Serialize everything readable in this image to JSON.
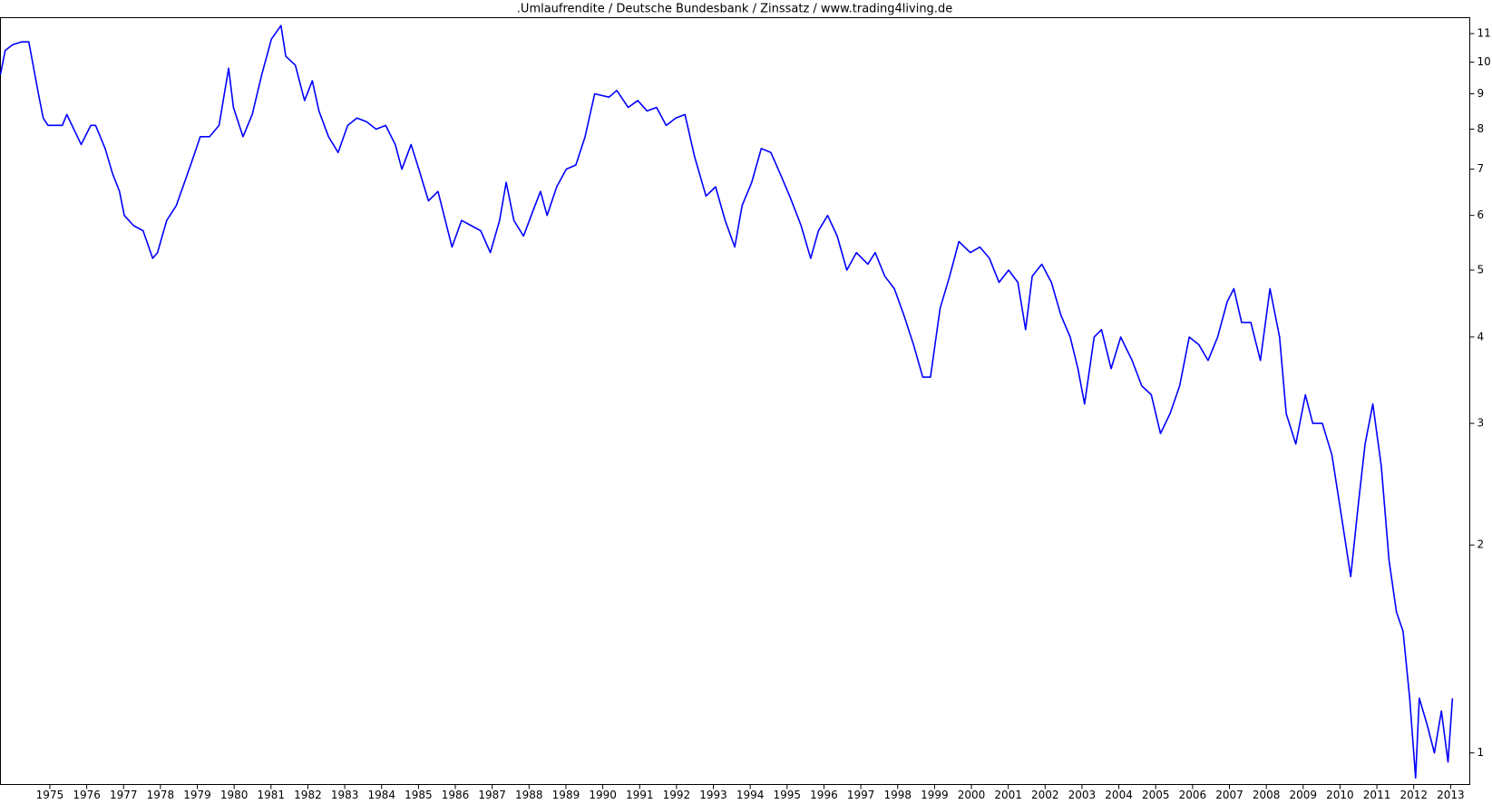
{
  "chart_data": {
    "type": "line",
    "title": ".Umlaufrendite / Deutsche Bundesbank / Zinssatz / www.trading4living.de",
    "log_scale": true,
    "grid": false,
    "xlim": [
      1973.66,
      2013.52
    ],
    "xticks": [
      1975,
      1976,
      1977,
      1978,
      1979,
      1980,
      1981,
      1982,
      1983,
      1984,
      1985,
      1986,
      1987,
      1988,
      1989,
      1990,
      1991,
      1992,
      1993,
      1994,
      1995,
      1996,
      1997,
      1998,
      1999,
      2000,
      2001,
      2002,
      2003,
      2004,
      2005,
      2006,
      2007,
      2008,
      2009,
      2010,
      2011,
      2012,
      2013
    ],
    "ylim": [
      0.9,
      11.6
    ],
    "yticks": [
      1,
      2,
      3,
      4,
      5,
      6,
      7,
      8,
      9,
      10,
      11
    ],
    "x": [
      1973.66,
      1973.79,
      1973.99,
      1974.23,
      1974.43,
      1974.69,
      1974.82,
      1974.95,
      1975.34,
      1975.46,
      1975.85,
      1976.11,
      1976.24,
      1976.5,
      1976.7,
      1976.89,
      1977.02,
      1977.27,
      1977.53,
      1977.79,
      1977.92,
      1978.17,
      1978.43,
      1978.82,
      1979.08,
      1979.33,
      1979.59,
      1979.85,
      1979.98,
      1980.24,
      1980.49,
      1980.75,
      1981.01,
      1981.27,
      1981.4,
      1981.66,
      1981.91,
      1982.12,
      1982.3,
      1982.56,
      1982.82,
      1983.08,
      1983.33,
      1983.59,
      1983.85,
      1984.11,
      1984.37,
      1984.55,
      1984.8,
      1985.01,
      1985.27,
      1985.53,
      1985.91,
      1986.17,
      1986.43,
      1986.69,
      1986.95,
      1987.2,
      1987.38,
      1987.59,
      1987.85,
      1988.11,
      1988.31,
      1988.49,
      1988.75,
      1989.01,
      1989.27,
      1989.52,
      1989.78,
      1990.17,
      1990.38,
      1990.69,
      1990.95,
      1991.2,
      1991.46,
      1991.72,
      1991.98,
      1992.23,
      1992.49,
      1992.8,
      1993.06,
      1993.32,
      1993.58,
      1993.78,
      1994.04,
      1994.3,
      1994.56,
      1994.81,
      1995.07,
      1995.38,
      1995.64,
      1995.85,
      1996.1,
      1996.36,
      1996.62,
      1996.88,
      1997.19,
      1997.39,
      1997.65,
      1997.91,
      1998.17,
      1998.43,
      1998.68,
      1998.89,
      1999.15,
      1999.41,
      1999.66,
      1999.97,
      2000.23,
      2000.49,
      2000.75,
      2001.01,
      2001.26,
      2001.47,
      2001.65,
      2001.91,
      2002.17,
      2002.43,
      2002.68,
      2002.89,
      2003.07,
      2003.33,
      2003.53,
      2003.79,
      2004.05,
      2004.36,
      2004.62,
      2004.88,
      2005.13,
      2005.39,
      2005.65,
      2005.91,
      2006.17,
      2006.42,
      2006.68,
      2006.94,
      2007.12,
      2007.33,
      2007.58,
      2007.84,
      2008.1,
      2008.36,
      2008.54,
      2008.8,
      2009.06,
      2009.26,
      2009.52,
      2009.78,
      2010.04,
      2010.29,
      2010.5,
      2010.68,
      2010.89,
      2011.12,
      2011.33,
      2011.53,
      2011.71,
      2011.89,
      2012.05,
      2012.15,
      2012.36,
      2012.56,
      2012.75,
      2012.93,
      2013.05
    ],
    "series": [
      {
        "color": "#0000ff",
        "values": [
          9.6,
          10.4,
          10.6,
          10.7,
          10.7,
          9.0,
          8.3,
          8.1,
          8.1,
          8.4,
          7.6,
          8.1,
          8.1,
          7.5,
          6.9,
          6.5,
          6.0,
          5.8,
          5.7,
          5.2,
          5.3,
          5.9,
          6.2,
          7.1,
          7.8,
          7.8,
          8.1,
          9.8,
          8.6,
          7.8,
          8.4,
          9.6,
          10.8,
          11.3,
          10.2,
          9.9,
          8.8,
          9.4,
          8.5,
          7.8,
          7.4,
          8.1,
          8.3,
          8.2,
          8.0,
          8.1,
          7.6,
          7.0,
          7.6,
          7.0,
          6.3,
          6.5,
          5.4,
          5.9,
          5.8,
          5.7,
          5.3,
          5.9,
          6.7,
          5.9,
          5.6,
          6.1,
          6.5,
          6.0,
          6.6,
          7.0,
          7.1,
          7.8,
          9.0,
          8.9,
          9.1,
          8.6,
          8.8,
          8.5,
          8.6,
          8.1,
          8.3,
          8.4,
          7.3,
          6.4,
          6.6,
          5.9,
          5.4,
          6.2,
          6.7,
          7.5,
          7.4,
          6.9,
          6.4,
          5.8,
          5.2,
          5.7,
          6.0,
          5.6,
          5.0,
          5.3,
          5.1,
          5.3,
          4.9,
          4.7,
          4.3,
          3.9,
          3.5,
          3.5,
          4.4,
          4.9,
          5.5,
          5.3,
          5.4,
          5.2,
          4.8,
          5.0,
          4.8,
          4.1,
          4.9,
          5.1,
          4.8,
          4.3,
          4.0,
          3.6,
          3.2,
          4.0,
          4.1,
          3.6,
          4.0,
          3.7,
          3.4,
          3.3,
          2.9,
          3.1,
          3.4,
          4.0,
          3.9,
          3.7,
          4.0,
          4.5,
          4.7,
          4.2,
          4.2,
          3.7,
          4.7,
          4.0,
          3.1,
          2.8,
          3.3,
          3.0,
          3.0,
          2.7,
          2.2,
          1.8,
          2.3,
          2.8,
          3.2,
          2.6,
          1.9,
          1.6,
          1.5,
          1.2,
          0.92,
          1.2,
          1.1,
          1.0,
          1.15,
          0.97,
          1.2
        ]
      }
    ]
  }
}
